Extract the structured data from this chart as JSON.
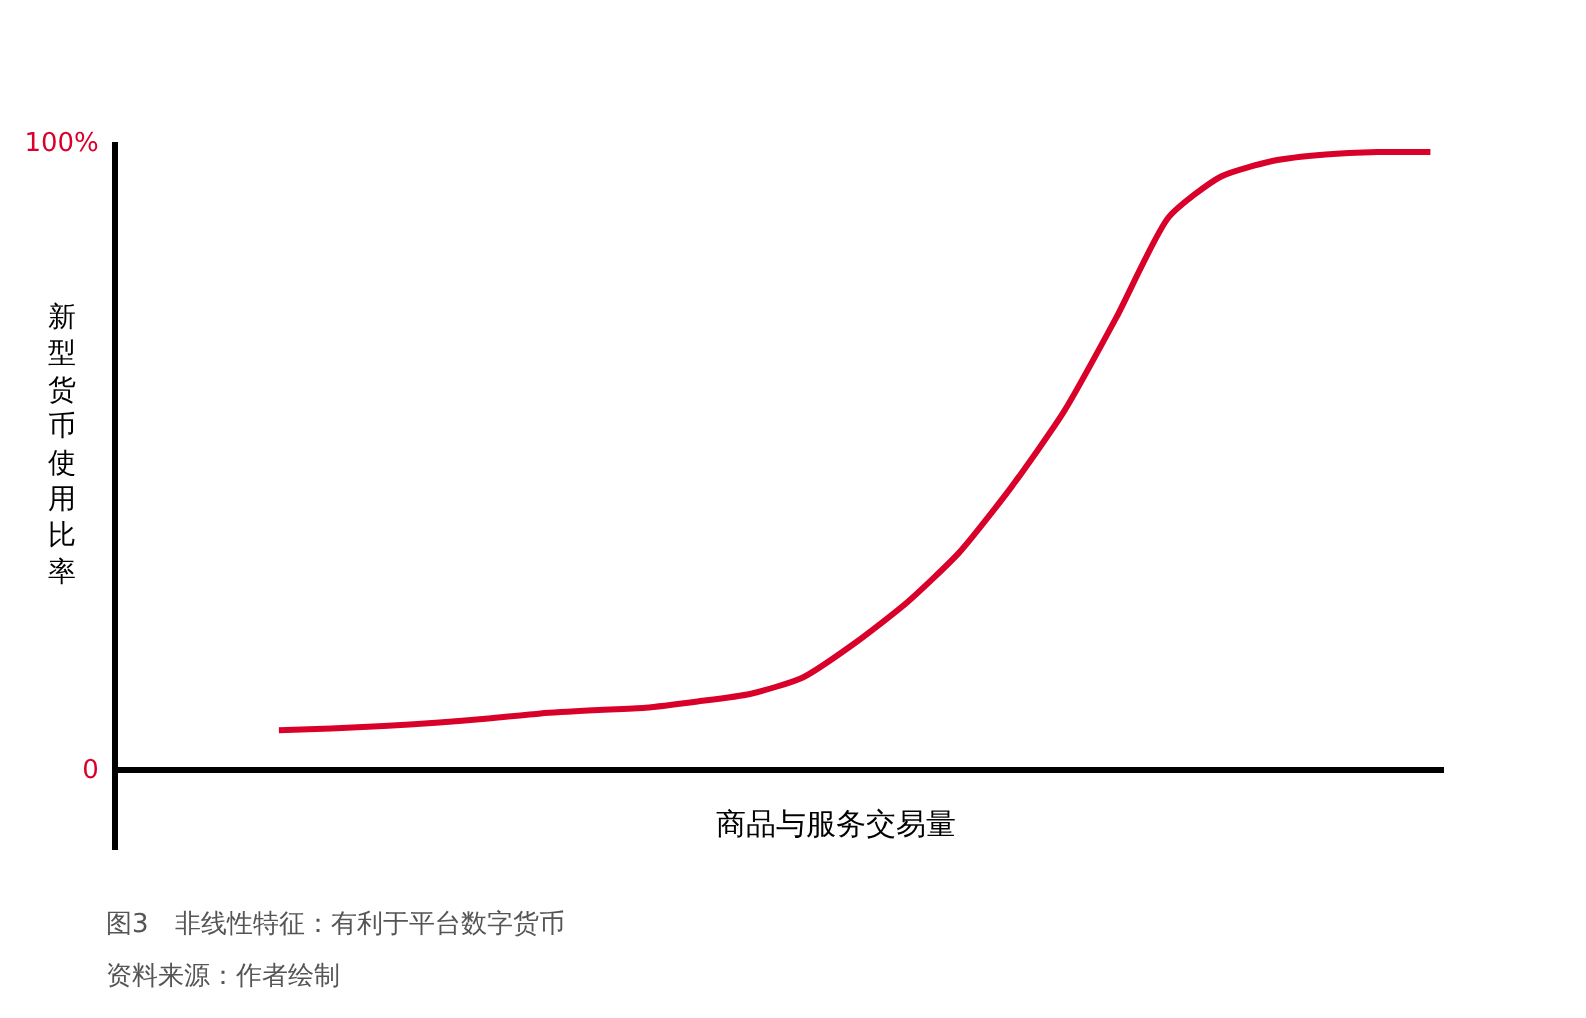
{
  "chart_data": {
    "type": "line",
    "xlabel": "商品与服务交易量",
    "ylabel": "新型货币使用比率",
    "categories": [
      null,
      null,
      null,
      null,
      null,
      null,
      null,
      null,
      null,
      null,
      null,
      null,
      null,
      null,
      null,
      null,
      null,
      null,
      null,
      null,
      null,
      null,
      null
    ],
    "series": [
      {
        "color": "#d9002a",
        "values": [
          6.1,
          6.4,
          6.8,
          7.3,
          8.0,
          8.8,
          9.3,
          9.7,
          10.7,
          11.9,
          14.5,
          20,
          26.5,
          34.5,
          45,
          57,
          72,
          88,
          94.5,
          97,
          98,
          98.4,
          98.4
        ]
      }
    ],
    "ylim": [
      -13,
      100
    ],
    "yticks": [
      0,
      {
        "value": 100,
        "label": "100%"
      }
    ],
    "marker": "none",
    "line_style": "solid",
    "tick_labels": "y",
    "annotations": [
      "图3　非线性特征：有利于平台数字货币",
      "资料来源：作者绘制"
    ]
  }
}
